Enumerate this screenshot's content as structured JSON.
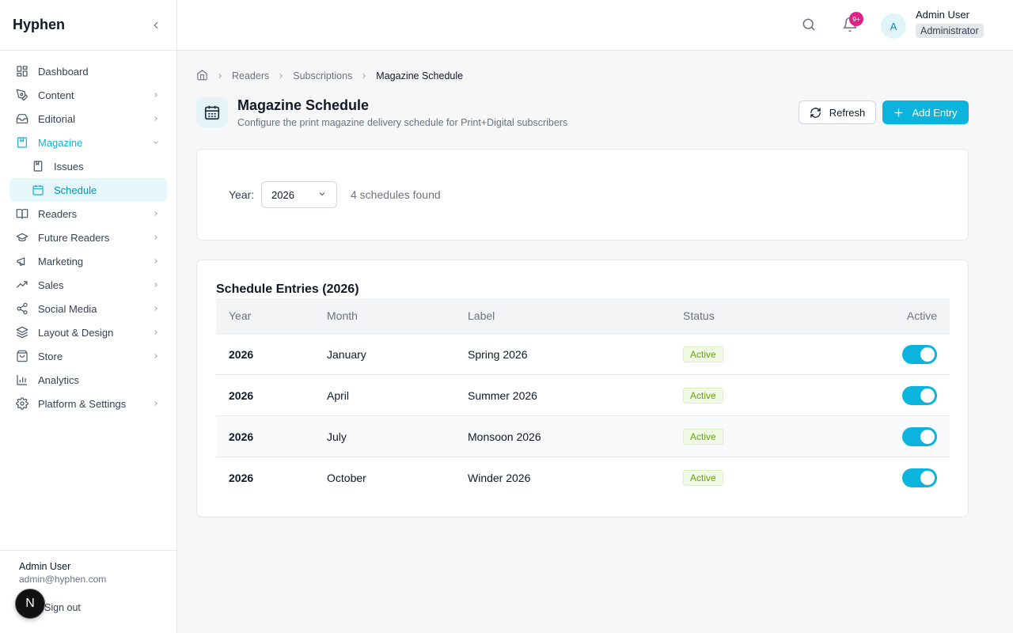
{
  "app": {
    "brand": "Hyphen"
  },
  "sidebar": {
    "items": [
      {
        "label": "Dashboard",
        "icon": "dashboard-icon"
      },
      {
        "label": "Content",
        "icon": "pen-icon"
      },
      {
        "label": "Editorial",
        "icon": "inbox-icon"
      },
      {
        "label": "Magazine",
        "icon": "magazine-icon",
        "expanded": true
      },
      {
        "label": "Issues",
        "icon": "book-icon"
      },
      {
        "label": "Schedule",
        "icon": "calendar-icon",
        "active": true
      },
      {
        "label": "Readers",
        "icon": "open-book-icon"
      },
      {
        "label": "Future Readers",
        "icon": "graduation-cap-icon"
      },
      {
        "label": "Marketing",
        "icon": "megaphone-icon"
      },
      {
        "label": "Sales",
        "icon": "trending-up-icon"
      },
      {
        "label": "Social Media",
        "icon": "share-icon"
      },
      {
        "label": "Layout & Design",
        "icon": "layers-icon"
      },
      {
        "label": "Store",
        "icon": "store-icon"
      },
      {
        "label": "Analytics",
        "icon": "bar-chart-icon"
      },
      {
        "label": "Platform & Settings",
        "icon": "gear-icon"
      }
    ],
    "footer": {
      "name": "Admin User",
      "email": "admin@hyphen.com",
      "signout": "Sign out",
      "badge": "N"
    }
  },
  "header": {
    "notification_count": "9+",
    "avatar_initial": "A",
    "user_name": "Admin User",
    "user_role": "Administrator"
  },
  "breadcrumb": {
    "items": [
      "Readers",
      "Subscriptions"
    ],
    "current": "Magazine Schedule"
  },
  "page": {
    "title": "Magazine Schedule",
    "subtitle": "Configure the print magazine delivery schedule for Print+Digital subscribers",
    "refresh_label": "Refresh",
    "add_label": "Add Entry"
  },
  "filter": {
    "year_label": "Year:",
    "year_value": "2026",
    "count_text": "4 schedules found"
  },
  "table": {
    "title": "Schedule Entries (2026)",
    "headers": {
      "year": "Year",
      "month": "Month",
      "label": "Label",
      "status": "Status",
      "active": "Active"
    },
    "rows": [
      {
        "year": "2026",
        "month": "January",
        "label": "Spring 2026",
        "status": "Active",
        "active": true
      },
      {
        "year": "2026",
        "month": "April",
        "label": "Summer 2026",
        "status": "Active",
        "active": true
      },
      {
        "year": "2026",
        "month": "July",
        "label": "Monsoon 2026",
        "status": "Active",
        "active": true
      },
      {
        "year": "2026",
        "month": "October",
        "label": "Winder 2026",
        "status": "Active",
        "active": true
      }
    ]
  },
  "colors": {
    "accent": "#0ab4dc",
    "status_active_bg": "#f0fae4",
    "status_active_text": "#65a30d",
    "notification": "#e11d8a"
  }
}
